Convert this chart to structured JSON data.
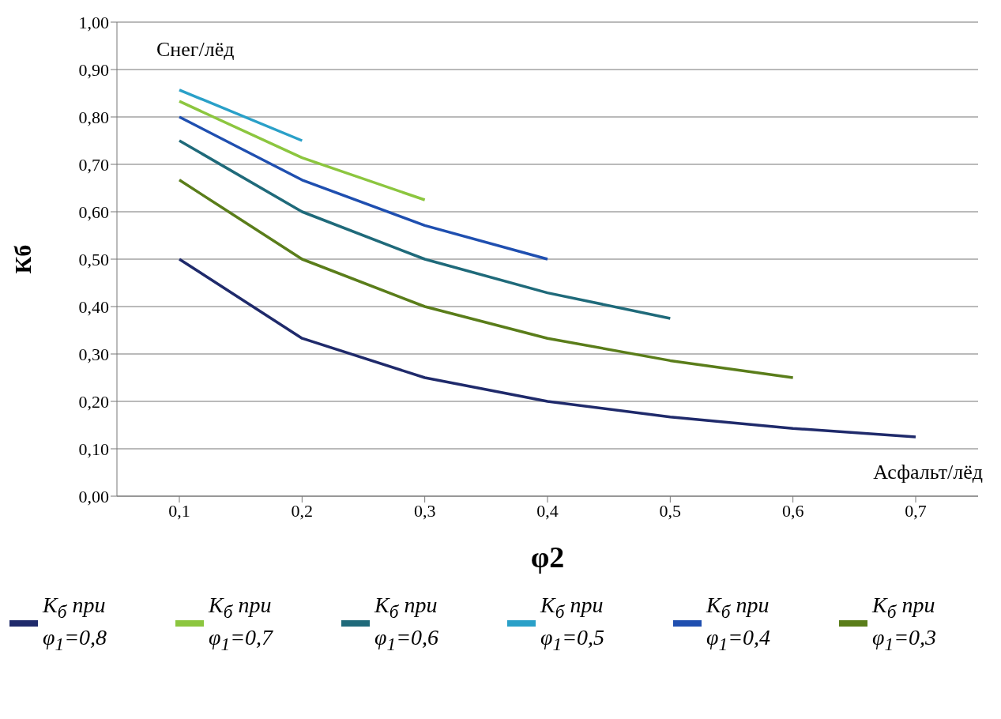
{
  "chart_data": {
    "type": "line",
    "xlabel": "φ2",
    "ylabel": "Кб",
    "categories": [
      "0,1",
      "0,2",
      "0,3",
      "0,4",
      "0,5",
      "0,6",
      "0,7"
    ],
    "series": [
      {
        "name": "K$_{б}$ при φ$_{1}$=0,8",
        "color": "#1f2a6b",
        "values": [
          0.5,
          0.333,
          0.25,
          0.2,
          0.167,
          0.143,
          0.125
        ]
      },
      {
        "name": "K$_{б}$ при φ$_{1}$=0,7",
        "color": "#8cc63f",
        "values": [
          0.833,
          0.714,
          0.625,
          null,
          null,
          null,
          null
        ]
      },
      {
        "name": "K$_{б}$ при φ$_{1}$=0,6",
        "color": "#1f6a7a",
        "values": [
          0.75,
          0.6,
          0.5,
          0.429,
          0.375,
          null,
          null
        ]
      },
      {
        "name": "K$_{б}$ при φ$_{1}$=0,5",
        "color": "#2aa0c8",
        "values": [
          0.857,
          0.75,
          null,
          null,
          null,
          null,
          null
        ]
      },
      {
        "name": "K$_{б}$ при φ$_{1}$=0,4",
        "color": "#1f4fb0",
        "values": [
          0.8,
          0.667,
          0.571,
          0.5,
          null,
          null,
          null
        ]
      },
      {
        "name": "K$_{б}$ при φ$_{1}$=0,3",
        "color": "#5a7d1a",
        "values": [
          0.667,
          0.5,
          0.4,
          0.333,
          0.286,
          0.25,
          null
        ]
      }
    ],
    "ylim": [
      0,
      1
    ],
    "yticks": [
      {
        "value": 0,
        "label": "0,00"
      },
      {
        "value": 0.1,
        "label": "0,10"
      },
      {
        "value": 0.2,
        "label": "0,20"
      },
      {
        "value": 0.3,
        "label": "0,30"
      },
      {
        "value": 0.4,
        "label": "0,40"
      },
      {
        "value": 0.5,
        "label": "0,50"
      },
      {
        "value": 0.6,
        "label": "0,60"
      },
      {
        "value": 0.7,
        "label": "0,70"
      },
      {
        "value": 0.8,
        "label": "0,80"
      },
      {
        "value": 0.9,
        "label": "0,90"
      },
      {
        "value": 1,
        "label": "1,00"
      }
    ],
    "grid": "y",
    "legend": "bottom",
    "marker": "none",
    "annotations": [
      "Снег/лёд",
      "Асфальт/лёд"
    ]
  }
}
